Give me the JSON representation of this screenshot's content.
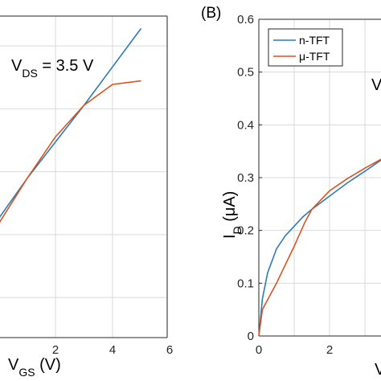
{
  "chart_data": [
    {
      "type": "line",
      "panel_label": "",
      "annotation": {
        "main": "V",
        "sub": "DS",
        "rest": " = 3.5 V"
      },
      "xlabel": {
        "main": "V",
        "sub": "GS",
        "rest": " (V)"
      },
      "ylabel": "",
      "xlim": [
        -1,
        6
      ],
      "ylim": [
        -0.2,
        0.72
      ],
      "xticks": [
        2,
        4,
        6
      ],
      "yticks": [],
      "grid": true,
      "colors": [
        "#2c7bb6",
        "#d9541e"
      ],
      "series": [
        {
          "x": [
            -1,
            1,
            3,
            5
          ],
          "y": [
            0.02,
            0.25,
            0.46,
            0.68
          ]
        },
        {
          "x": [
            -1,
            1,
            2,
            3,
            4,
            5
          ],
          "y": [
            -0.01,
            0.25,
            0.37,
            0.46,
            0.52,
            0.53
          ]
        }
      ]
    },
    {
      "type": "line",
      "panel_label": "(B)",
      "annotation": {
        "main": "V",
        "sub": "",
        "rest": ""
      },
      "xlabel": {
        "main": "V",
        "sub": "",
        "rest": ""
      },
      "ylabel": {
        "main": "I",
        "sub": "D",
        "rest": " (μA)"
      },
      "xlim": [
        0,
        4
      ],
      "ylim": [
        0,
        0.6
      ],
      "xticks": [
        0,
        2
      ],
      "yticks": [
        0,
        0.1,
        0.2,
        0.3,
        0.4,
        0.5,
        0.6
      ],
      "ytick_labels": [
        "0",
        "0.1",
        "0.2",
        "0.3",
        "0.4",
        "0.5",
        "0.6"
      ],
      "grid": true,
      "legend": {
        "position": "top-left",
        "entries": [
          "n-TFT",
          "μ-TFT"
        ]
      },
      "colors": [
        "#2c7bb6",
        "#d9541e"
      ],
      "series": [
        {
          "name": "n-TFT",
          "x": [
            0,
            0.1,
            0.25,
            0.5,
            0.75,
            1.0,
            1.25,
            1.5,
            2.0,
            2.5,
            3.0,
            3.6
          ],
          "y": [
            0,
            0.07,
            0.12,
            0.165,
            0.19,
            0.208,
            0.226,
            0.24,
            0.265,
            0.29,
            0.312,
            0.34
          ]
        },
        {
          "name": "μ-TFT",
          "x": [
            0,
            0.1,
            0.5,
            1.0,
            1.3,
            1.5,
            2.0,
            2.5,
            3.0,
            3.6
          ],
          "y": [
            0,
            0.05,
            0.1,
            0.17,
            0.215,
            0.24,
            0.275,
            0.298,
            0.318,
            0.34
          ]
        }
      ]
    }
  ]
}
